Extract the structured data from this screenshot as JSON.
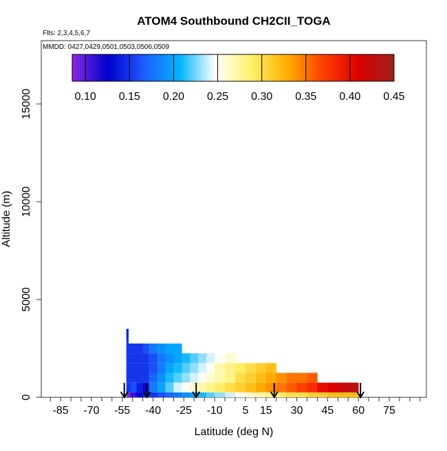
{
  "chart_data": {
    "type": "heatmap",
    "title": "ATOM4 Southbound CH2CII_TOGA",
    "flights_label": "Flts: 2,3,4,5,6,7",
    "dates_label": "MMDD: 0427,0429,0501,0503,0506,0509",
    "xlabel": "Latitude (deg N)",
    "ylabel": "Altitude (m)",
    "xlim": [
      -90,
      90
    ],
    "ylim": [
      0,
      17500
    ],
    "x_ticks": [
      -85,
      -70,
      -55,
      -40,
      -25,
      -10,
      5,
      15,
      30,
      45,
      60,
      75
    ],
    "y_ticks": [
      0,
      5000,
      10000,
      15000
    ],
    "colorbar": {
      "min": 0.085,
      "max": 0.45,
      "ticks": [
        0.1,
        0.15,
        0.2,
        0.25,
        0.3,
        0.35,
        0.4,
        0.45
      ],
      "tick_labels": [
        "0.10",
        "0.15",
        "0.20",
        "0.25",
        "0.30",
        "0.35",
        "0.40",
        "0.45"
      ],
      "colors": [
        "#8a2be2",
        "#0000cd",
        "#1e5bff",
        "#00b4ff",
        "#ffffff",
        "#fff26b",
        "#ffb000",
        "#ff4000",
        "#dd0000",
        "#9c2020"
      ]
    },
    "bands": [
      {
        "y0": 0,
        "y1": 250,
        "lat": [
          -53,
          -51,
          -48,
          -45,
          -42,
          -38,
          -34,
          -30,
          -26,
          -22,
          -18,
          -14,
          -10,
          -5,
          0,
          5,
          10,
          15,
          20,
          25,
          30,
          35,
          40,
          45,
          50,
          55
        ],
        "values": [
          0.09,
          0.11,
          0.13,
          0.14,
          0.15,
          0.16,
          0.17,
          0.18,
          0.19,
          0.2,
          0.21,
          0.22,
          0.23,
          0.24,
          0.25,
          0.26,
          0.27,
          0.28,
          0.29,
          0.3,
          0.3,
          0.31,
          0.31,
          0.32,
          0.32,
          0.32
        ]
      },
      {
        "y0": 250,
        "y1": 750,
        "lat": [
          -53,
          -51,
          -48,
          -45,
          -42,
          -38,
          -34,
          -30,
          -26,
          -22,
          -18,
          -14,
          -10,
          -5,
          0,
          5,
          10,
          15,
          20,
          25,
          30,
          35,
          40,
          45,
          50,
          55
        ],
        "values": [
          0.15,
          0.16,
          0.14,
          0.13,
          0.18,
          0.2,
          0.22,
          0.24,
          0.25,
          0.26,
          0.27,
          0.28,
          0.29,
          0.3,
          0.31,
          0.32,
          0.33,
          0.34,
          0.35,
          0.36,
          0.37,
          0.38,
          0.4,
          0.41,
          0.42,
          0.43
        ]
      },
      {
        "y0": 750,
        "y1": 1250,
        "lat": [
          -53,
          -51,
          -48,
          -45,
          -42,
          -38,
          -34,
          -30,
          -26,
          -22,
          -18,
          -14,
          -10,
          -5,
          0,
          5,
          10,
          15,
          20,
          25,
          30,
          35
        ],
        "values": [
          0.15,
          0.15,
          0.15,
          0.15,
          0.17,
          0.19,
          0.21,
          0.22,
          0.23,
          0.24,
          0.25,
          0.26,
          0.27,
          0.28,
          0.3,
          0.31,
          0.32,
          0.33,
          0.34,
          0.35,
          0.35,
          0.36
        ]
      },
      {
        "y0": 1250,
        "y1": 1750,
        "lat": [
          -53,
          -51,
          -48,
          -45,
          -42,
          -38,
          -34,
          -30,
          -26,
          -22,
          -18,
          -14,
          -10,
          -5,
          0,
          5,
          10,
          15
        ],
        "values": [
          0.15,
          0.15,
          0.15,
          0.15,
          0.16,
          0.18,
          0.2,
          0.21,
          0.22,
          0.23,
          0.24,
          0.25,
          0.27,
          0.28,
          0.29,
          0.3,
          0.31,
          0.32
        ]
      },
      {
        "y0": 1750,
        "y1": 2250,
        "lat": [
          -53,
          -51,
          -48,
          -45,
          -42,
          -38,
          -34,
          -30,
          -26,
          -22,
          -18,
          -14,
          -10,
          -5
        ],
        "values": [
          0.15,
          0.15,
          0.15,
          0.15,
          0.16,
          0.18,
          0.19,
          0.2,
          0.21,
          0.22,
          0.23,
          0.24,
          0.25,
          0.26
        ]
      },
      {
        "y0": 2250,
        "y1": 2750,
        "lat": [
          -53,
          -51,
          -48,
          -45,
          -42,
          -38,
          -34,
          -30
        ],
        "values": [
          0.15,
          0.15,
          0.15,
          0.16,
          0.18,
          0.19,
          0.2,
          0.2
        ]
      },
      {
        "y0": 2750,
        "y1": 3000,
        "lat": [
          -53
        ],
        "values": [
          0.15
        ]
      },
      {
        "y0": 3000,
        "y1": 3500,
        "lat": [
          -53
        ],
        "values": [
          0.14
        ]
      }
    ],
    "arrows_lat": [
      -54,
      -43,
      -19,
      19,
      61
    ]
  }
}
